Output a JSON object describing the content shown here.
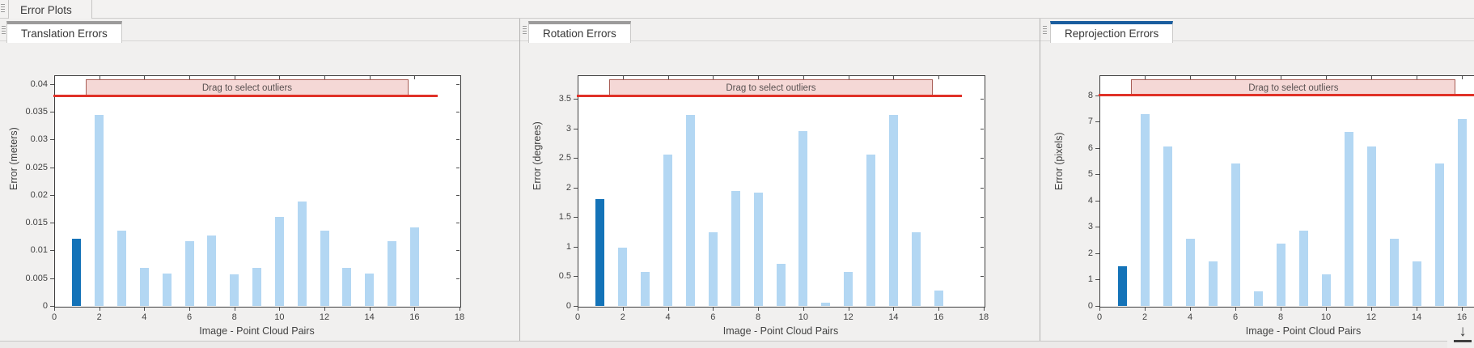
{
  "app_tab": "Error Plots",
  "band_label": "Drag to select outliers",
  "icons": {
    "dock": "↓",
    "grip": "triple-line-drag-grip"
  },
  "colors": {
    "bar_light": "#b3d7f3",
    "bar_selected": "#1473b8",
    "threshold_red": "#e03127",
    "band_fill": "#f5d8d6",
    "band_border": "#a85d55",
    "accent_gray": "#9c9b9b",
    "accent_blue": "#1a5d9e"
  },
  "panels": [
    {
      "tab_label": "Translation Errors",
      "accent": "#9c9b9b"
    },
    {
      "tab_label": "Rotation Errors",
      "accent": "#9c9b9b"
    },
    {
      "tab_label": "Reprojection Errors",
      "accent": "#1a5d9e"
    }
  ],
  "chart_data": [
    {
      "type": "bar",
      "title": "Translation Errors",
      "xlabel": "Image - Point Cloud Pairs",
      "ylabel": "Error (meters)",
      "x": [
        1,
        2,
        3,
        4,
        5,
        6,
        7,
        8,
        9,
        10,
        11,
        12,
        13,
        14,
        15,
        16
      ],
      "values": [
        0.0121,
        0.0345,
        0.0136,
        0.0068,
        0.0059,
        0.0117,
        0.0127,
        0.0057,
        0.0069,
        0.0161,
        0.0189,
        0.0136,
        0.0068,
        0.0059,
        0.0117,
        0.0141
      ],
      "selected_bar_x": 1,
      "threshold_line": 0.038,
      "band_label": "Drag to select outliers",
      "xlim": [
        0,
        18
      ],
      "ylim": [
        0,
        0.0416
      ],
      "xticks": [
        0,
        2,
        4,
        6,
        8,
        10,
        12,
        14,
        16,
        18
      ],
      "ytick_values": [
        0,
        0.005,
        0.01,
        0.015,
        0.02,
        0.025,
        0.03,
        0.035,
        0.04
      ],
      "ytick_labels": [
        "0",
        "0.005",
        "0.01",
        "0.015",
        "0.02",
        "0.025",
        "0.03",
        "0.035",
        "0.04"
      ],
      "grid": false,
      "legend": "none"
    },
    {
      "type": "bar",
      "title": "Rotation Errors",
      "xlabel": "Image - Point Cloud Pairs",
      "ylabel": "Error (degrees)",
      "x": [
        1,
        2,
        3,
        4,
        5,
        6,
        7,
        8,
        9,
        10,
        11,
        12,
        13,
        14,
        15,
        16
      ],
      "values": [
        1.8,
        0.99,
        0.57,
        2.56,
        3.23,
        1.25,
        1.95,
        1.92,
        0.71,
        2.96,
        0.06,
        0.57,
        2.56,
        3.23,
        1.25,
        0.26
      ],
      "selected_bar_x": 1,
      "threshold_line": 3.56,
      "band_label": "Drag to select outliers",
      "xlim": [
        0,
        18
      ],
      "ylim": [
        0,
        3.9
      ],
      "xticks": [
        0,
        2,
        4,
        6,
        8,
        10,
        12,
        14,
        16,
        18
      ],
      "ytick_values": [
        0,
        0.5,
        1,
        1.5,
        2,
        2.5,
        3,
        3.5
      ],
      "ytick_labels": [
        "0",
        "0.5",
        "1",
        "1.5",
        "2",
        "2.5",
        "3",
        "3.5"
      ],
      "grid": false,
      "legend": "none"
    },
    {
      "type": "bar",
      "title": "Reprojection Errors",
      "xlabel": "Image - Point Cloud Pairs",
      "ylabel": "Error (pixels)",
      "x": [
        1,
        2,
        3,
        4,
        5,
        6,
        7,
        8,
        9,
        10,
        11,
        12,
        13,
        14,
        15,
        16
      ],
      "values": [
        1.5,
        7.3,
        6.05,
        2.55,
        1.7,
        5.4,
        0.55,
        2.37,
        2.86,
        1.2,
        6.62,
        6.05,
        2.55,
        1.7,
        5.4,
        7.1
      ],
      "selected_bar_x": 1,
      "threshold_line": 8.02,
      "band_label": "Drag to select outliers",
      "xlim": [
        0,
        18
      ],
      "ylim": [
        0,
        8.76
      ],
      "xticks": [
        0,
        2,
        4,
        6,
        8,
        10,
        12,
        14,
        16,
        18
      ],
      "ytick_values": [
        0,
        1,
        2,
        3,
        4,
        5,
        6,
        7,
        8
      ],
      "ytick_labels": [
        "0",
        "1",
        "2",
        "3",
        "4",
        "5",
        "6",
        "7",
        "8"
      ],
      "grid": false,
      "legend": "none"
    }
  ]
}
